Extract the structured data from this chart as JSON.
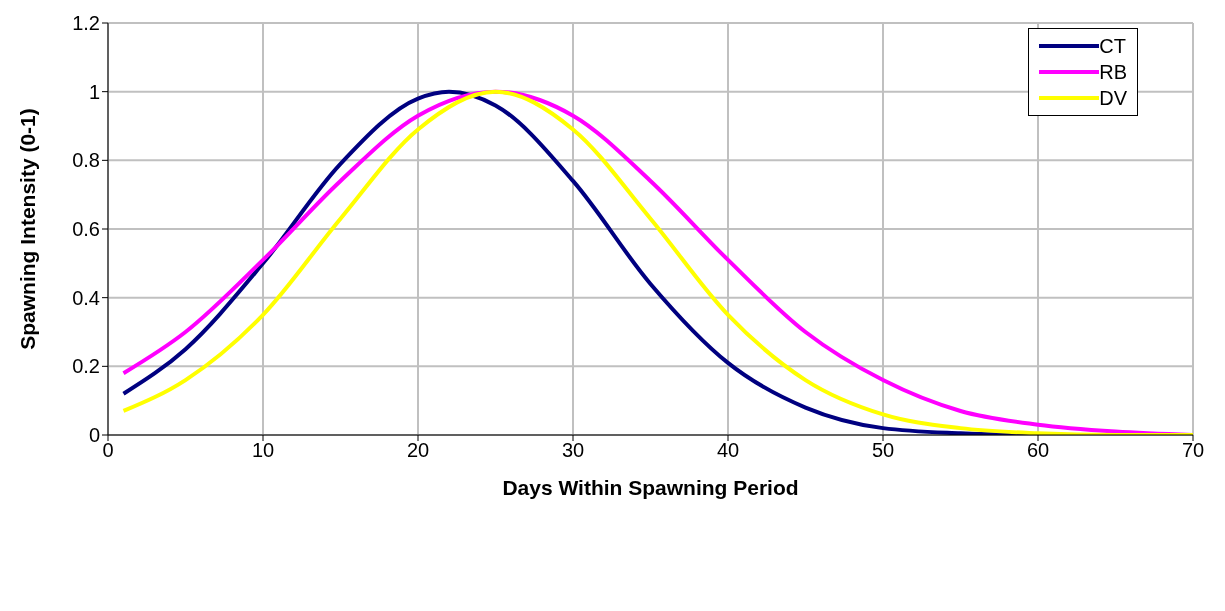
{
  "chart_data": {
    "type": "line",
    "xlabel": "Days Within Spawning Period",
    "ylabel": "Spawning Intensity (0-1)",
    "xlim": [
      0,
      70
    ],
    "xticks": [
      0,
      10,
      20,
      30,
      40,
      50,
      60,
      70
    ],
    "ylim": [
      0,
      1.2
    ],
    "yticks": [
      0,
      0.2,
      0.4,
      0.6,
      0.8,
      1,
      1.2
    ],
    "grid": true,
    "legend": "top right",
    "marker": "none",
    "line_style": "solid",
    "series": [
      {
        "name": "CT",
        "color": "#000080",
        "x": [
          1,
          5,
          10,
          15,
          20,
          22,
          25,
          30,
          35,
          40,
          45,
          50,
          55,
          60
        ],
        "values": [
          0.12,
          0.25,
          0.5,
          0.79,
          0.98,
          1,
          0.96,
          0.74,
          0.44,
          0.21,
          0.08,
          0.02,
          0.005,
          0
        ]
      },
      {
        "name": "RB",
        "color": "#ff00ff",
        "x": [
          1,
          5,
          10,
          15,
          20,
          25,
          30,
          35,
          40,
          45,
          50,
          55,
          60,
          65,
          70
        ],
        "values": [
          0.18,
          0.3,
          0.51,
          0.74,
          0.93,
          1,
          0.93,
          0.74,
          0.51,
          0.3,
          0.16,
          0.07,
          0.03,
          0.01,
          0
        ]
      },
      {
        "name": "DV",
        "color": "#ffff00",
        "x": [
          1,
          5,
          10,
          15,
          20,
          25,
          30,
          35,
          40,
          45,
          50,
          55,
          60,
          65,
          70
        ],
        "values": [
          0.07,
          0.16,
          0.35,
          0.63,
          0.89,
          1,
          0.89,
          0.63,
          0.35,
          0.16,
          0.06,
          0.02,
          0.005,
          0,
          0
        ]
      }
    ]
  }
}
